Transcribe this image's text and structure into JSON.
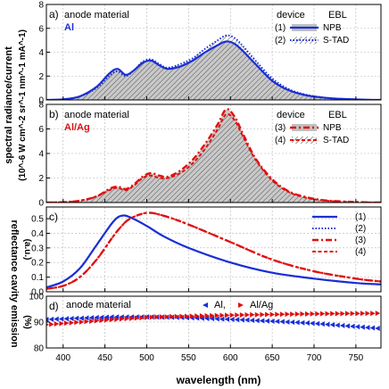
{
  "figure": {
    "x_axis_label": "wavelength (nm)",
    "x_ticks": [
      400,
      450,
      500,
      550,
      600,
      650,
      700,
      750
    ],
    "y_label_top": "spectral radiance/current",
    "y_label_top_units": "(10^-6 W cm^-2 sr^-1 nm^-1 mA^-1)",
    "y_label_bottom": "reflectance cavity emission",
    "colors": {
      "blue": "#1a2fd6",
      "red": "#e01010",
      "hatch": "#555555",
      "grid": "#b4b4b4"
    }
  },
  "chart_data": [
    {
      "type": "line",
      "panel": "a)",
      "title": "anode material",
      "material": "Al",
      "legend_header": [
        "device",
        "EBL"
      ],
      "legend": [
        {
          "label": "(1)",
          "ebl": "NPB",
          "style": "solid-blue",
          "fill": "gray"
        },
        {
          "label": "(2)",
          "ebl": "S-TAD",
          "style": "dotted-blue",
          "fill": "hatch"
        }
      ],
      "ylim": [
        0,
        8
      ],
      "yticks": [
        0,
        2,
        4,
        6,
        8
      ],
      "x": [
        380,
        400,
        420,
        440,
        455,
        465,
        475,
        485,
        495,
        505,
        515,
        525,
        540,
        555,
        570,
        585,
        595,
        605,
        615,
        630,
        650,
        670,
        690,
        710,
        730,
        760,
        780
      ],
      "series": [
        {
          "name": "(1)",
          "values": [
            0,
            0.05,
            0.3,
            1.1,
            2.2,
            2.6,
            2.1,
            2.5,
            3.1,
            3.3,
            2.9,
            2.6,
            2.8,
            3.3,
            4.0,
            4.6,
            4.9,
            4.7,
            4.1,
            3.0,
            1.6,
            0.8,
            0.4,
            0.2,
            0.1,
            0.02,
            0.0
          ]
        },
        {
          "name": "(2)",
          "values": [
            0,
            0.05,
            0.3,
            1.0,
            2.0,
            2.4,
            2.0,
            2.5,
            3.2,
            3.4,
            3.0,
            2.7,
            3.0,
            3.5,
            4.3,
            5.0,
            5.4,
            5.2,
            4.5,
            3.3,
            1.8,
            0.9,
            0.45,
            0.22,
            0.1,
            0.02,
            0.0
          ]
        }
      ]
    },
    {
      "type": "line",
      "panel": "b)",
      "title": "anode material",
      "material": "Al/Ag",
      "legend_header": [
        "device",
        "EBL"
      ],
      "legend": [
        {
          "label": "(3)",
          "ebl": "NPB",
          "style": "dashdot-red",
          "fill": "gray"
        },
        {
          "label": "(4)",
          "ebl": "S-TAD",
          "style": "dashed-red",
          "fill": "hatch"
        }
      ],
      "ylim": [
        0,
        8
      ],
      "yticks": [
        0,
        2,
        4,
        6,
        8
      ],
      "x": [
        380,
        400,
        420,
        440,
        455,
        465,
        475,
        485,
        495,
        505,
        515,
        525,
        540,
        555,
        570,
        585,
        595,
        605,
        615,
        630,
        650,
        670,
        690,
        710,
        730,
        760,
        780
      ],
      "series": [
        {
          "name": "(3)",
          "values": [
            0,
            0.03,
            0.15,
            0.5,
            1.1,
            1.3,
            1.1,
            1.5,
            2.1,
            2.4,
            2.2,
            2.1,
            2.6,
            3.5,
            4.8,
            6.4,
            7.6,
            7.0,
            5.6,
            3.6,
            1.9,
            0.9,
            0.45,
            0.2,
            0.1,
            0.02,
            0.0
          ]
        },
        {
          "name": "(4)",
          "values": [
            0,
            0.03,
            0.15,
            0.5,
            1.0,
            1.2,
            1.0,
            1.4,
            2.0,
            2.2,
            2.0,
            2.0,
            2.4,
            3.2,
            4.4,
            6.0,
            7.2,
            6.7,
            5.4,
            3.5,
            1.8,
            0.85,
            0.4,
            0.18,
            0.08,
            0.02,
            0.0
          ]
        }
      ]
    },
    {
      "type": "line",
      "panel": "c)",
      "ylabel": "(a.u.)",
      "ylim": [
        0,
        0.58
      ],
      "yticks": [
        0.0,
        0.1,
        0.2,
        0.3,
        0.4,
        0.5
      ],
      "legend": [
        {
          "label": "(1)",
          "style": "solid-blue"
        },
        {
          "label": "(2)",
          "style": "dotted-blue"
        },
        {
          "label": "(3)",
          "style": "dashdot-red"
        },
        {
          "label": "(4)",
          "style": "dashed-red"
        }
      ],
      "x": [
        380,
        400,
        420,
        440,
        460,
        470,
        480,
        500,
        520,
        550,
        600,
        650,
        700,
        750,
        780
      ],
      "series": [
        {
          "name": "(1)",
          "values": [
            0.03,
            0.07,
            0.16,
            0.32,
            0.48,
            0.52,
            0.51,
            0.45,
            0.38,
            0.3,
            0.2,
            0.13,
            0.09,
            0.06,
            0.05
          ]
        },
        {
          "name": "(2)",
          "values": [
            0.03,
            0.07,
            0.16,
            0.32,
            0.48,
            0.52,
            0.51,
            0.45,
            0.38,
            0.3,
            0.2,
            0.13,
            0.09,
            0.06,
            0.05
          ]
        },
        {
          "name": "(3)",
          "values": [
            0.02,
            0.04,
            0.1,
            0.22,
            0.38,
            0.45,
            0.5,
            0.54,
            0.52,
            0.46,
            0.34,
            0.22,
            0.14,
            0.09,
            0.07
          ]
        },
        {
          "name": "(4)",
          "values": [
            0.02,
            0.04,
            0.1,
            0.22,
            0.38,
            0.45,
            0.5,
            0.54,
            0.52,
            0.46,
            0.34,
            0.22,
            0.14,
            0.09,
            0.07
          ]
        }
      ]
    },
    {
      "type": "scatter",
      "panel": "d)",
      "title": "anode material",
      "ylabel": "(%)",
      "ylim": [
        80,
        100
      ],
      "yticks": [
        80,
        90,
        100
      ],
      "legend": [
        {
          "label": "Al,",
          "color": "blue"
        },
        {
          "label": "Al/Ag",
          "color": "red"
        }
      ],
      "x": [
        380,
        420,
        460,
        500,
        540,
        580,
        620,
        660,
        700,
        740,
        780
      ],
      "series": [
        {
          "name": "Al,",
          "values": [
            91.0,
            91.5,
            92.0,
            92.0,
            91.8,
            91.3,
            90.8,
            90.2,
            89.5,
            88.5,
            87.5
          ]
        },
        {
          "name": "Al/Ag",
          "values": [
            89.0,
            90.0,
            91.0,
            91.8,
            92.2,
            92.5,
            92.8,
            93.0,
            93.2,
            93.3,
            93.4
          ]
        }
      ]
    }
  ]
}
